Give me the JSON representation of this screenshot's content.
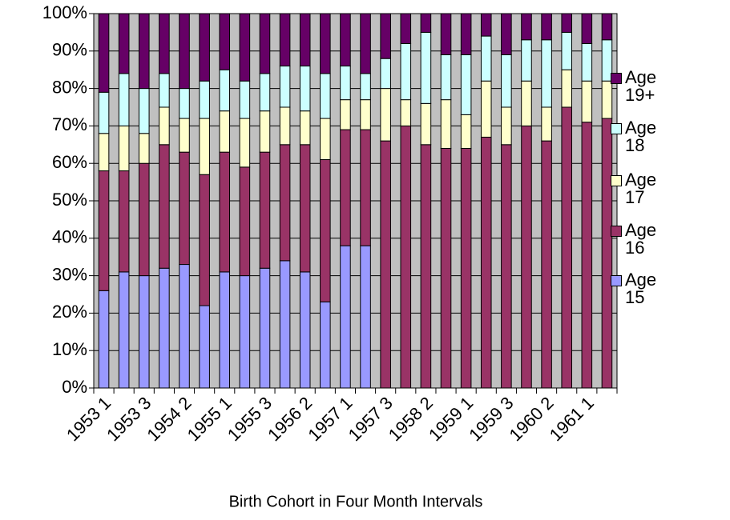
{
  "chart_data": {
    "type": "bar",
    "stacked": true,
    "x_label": "Birth Cohort in Four Month Intervals",
    "categories": [
      "1953 1",
      null,
      "1953 3",
      null,
      "1954 2",
      null,
      "1955 1",
      null,
      "1955 3",
      null,
      "1956 2",
      null,
      "1957 1",
      null,
      "1957 3",
      null,
      "1958 2",
      null,
      "1959 1",
      null,
      "1959 3",
      null,
      "1960 2",
      null,
      "1961 1",
      null
    ],
    "series": [
      {
        "name": "Age 15",
        "color": "#9999ff",
        "values": [
          26,
          31,
          30,
          32,
          33,
          22,
          31,
          30,
          32,
          34,
          31,
          23,
          38,
          38,
          0,
          0,
          0,
          0,
          0,
          0,
          0,
          0,
          0,
          0,
          0,
          0
        ]
      },
      {
        "name": "Age 16",
        "color": "#993366",
        "values": [
          32,
          27,
          30,
          33,
          30,
          35,
          32,
          29,
          31,
          31,
          34,
          38,
          31,
          31,
          66,
          70,
          65,
          64,
          64,
          67,
          65,
          70,
          66,
          75,
          71,
          72
        ]
      },
      {
        "name": "Age 17",
        "color": "#ffffcc",
        "values": [
          10,
          12,
          8,
          10,
          9,
          15,
          11,
          13,
          11,
          10,
          9,
          11,
          8,
          8,
          14,
          7,
          11,
          13,
          9,
          15,
          10,
          12,
          9,
          10,
          11,
          10
        ]
      },
      {
        "name": "Age 18",
        "color": "#ccffff",
        "values": [
          11,
          14,
          12,
          9,
          8,
          10,
          11,
          10,
          10,
          11,
          12,
          12,
          9,
          7,
          8,
          15,
          19,
          12,
          16,
          12,
          14,
          11,
          18,
          10,
          10,
          11
        ]
      },
      {
        "name": "Age 19+",
        "color": "#660066",
        "values": [
          21,
          16,
          20,
          16,
          20,
          18,
          15,
          18,
          16,
          14,
          14,
          16,
          14,
          16,
          12,
          8,
          5,
          11,
          11,
          6,
          11,
          7,
          7,
          5,
          8,
          7
        ]
      }
    ],
    "ylim": [
      0,
      100
    ],
    "yticks": [
      {
        "value": 0,
        "label": "0%"
      },
      {
        "value": 10,
        "label": "10%"
      },
      {
        "value": 20,
        "label": "20%"
      },
      {
        "value": 30,
        "label": "30%"
      },
      {
        "value": 40,
        "label": "40%"
      },
      {
        "value": 50,
        "label": "50%"
      },
      {
        "value": 60,
        "label": "60%"
      },
      {
        "value": 70,
        "label": "70%"
      },
      {
        "value": 80,
        "label": "80%"
      },
      {
        "value": 90,
        "label": "90%"
      },
      {
        "value": 100,
        "label": "100%"
      }
    ],
    "grid": true,
    "plot_background": "#c0c0c0",
    "legend": "right"
  }
}
